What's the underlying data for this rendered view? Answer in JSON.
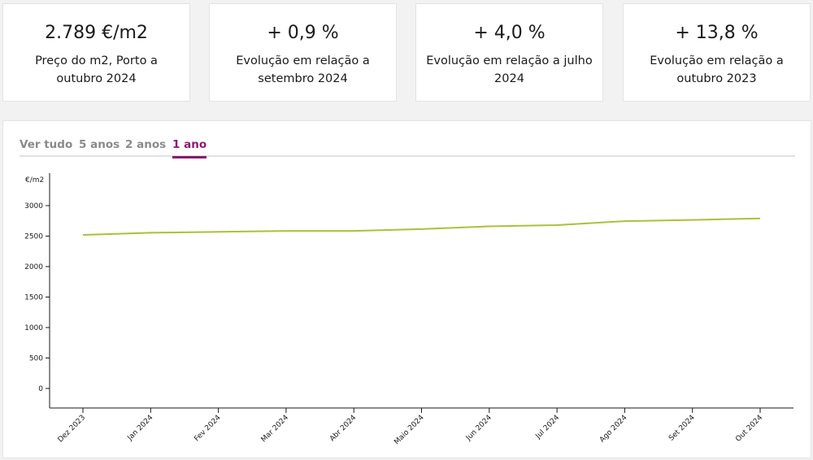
{
  "cards": [
    {
      "value": "2.789 €/m2",
      "label": "Preço do m2, Porto a outubro 2024"
    },
    {
      "value": "+ 0,9 %",
      "label": "Evolução em relação a setembro 2024"
    },
    {
      "value": "+ 4,0 %",
      "label": "Evolução em relação a julho 2024"
    },
    {
      "value": "+ 13,8 %",
      "label": "Evolução em relação a outubro 2023"
    }
  ],
  "tabs": [
    {
      "label": "Ver tudo",
      "active": false
    },
    {
      "label": "5 anos",
      "active": false
    },
    {
      "label": "2 anos",
      "active": false
    },
    {
      "label": "1 ano",
      "active": true
    }
  ],
  "chart_data": {
    "type": "line",
    "ylabel": "€/m2",
    "xlabel": "",
    "ylim": [
      0,
      3000
    ],
    "yticks": [
      0,
      500,
      1000,
      1500,
      2000,
      2500,
      3000
    ],
    "categories": [
      "Dez 2023",
      "Jan 2024",
      "Fev 2024",
      "Mar 2024",
      "Abr 2024",
      "Maio 2024",
      "Jun 2024",
      "Jul 2024",
      "Ago 2024",
      "Set 2024",
      "Out 2024"
    ],
    "series": [
      {
        "values": [
          2520,
          2555,
          2570,
          2585,
          2585,
          2615,
          2660,
          2680,
          2745,
          2765,
          2789
        ]
      }
    ],
    "grid": false,
    "line_color": "#a8c23a"
  }
}
